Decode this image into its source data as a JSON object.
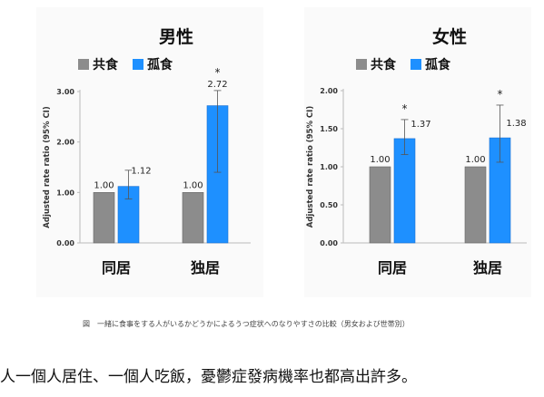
{
  "chart_data": [
    {
      "type": "bar",
      "title": "男性",
      "categories": [
        "同居",
        "独居"
      ],
      "ylabel": "Adjusted rate ratio (95% CI)",
      "ylim": [
        0,
        3
      ],
      "yticks": [
        "0.00",
        "1.00",
        "2.00",
        "3.00"
      ],
      "series": [
        {
          "name": "共食",
          "color": "#8c8c8c",
          "values": [
            1.0,
            1.0
          ],
          "labels": [
            "1.00",
            "1.00"
          ],
          "ci": [
            null,
            null
          ]
        },
        {
          "name": "孤食",
          "color": "#1e90ff",
          "values": [
            1.12,
            2.72
          ],
          "labels": [
            "1.12",
            "2.72"
          ],
          "ci": [
            [
              0.87,
              1.44
            ],
            [
              1.4,
              3.02
            ]
          ]
        }
      ],
      "significance": [
        {
          "series": 1,
          "category": 1,
          "mark": "*"
        }
      ],
      "legend": "top-left",
      "grid": false
    },
    {
      "type": "bar",
      "title": "女性",
      "categories": [
        "同居",
        "独居"
      ],
      "ylabel": "Adjusted rate ratio (95% CI)",
      "ylim": [
        0,
        2
      ],
      "yticks": [
        "0.00",
        "0.50",
        "1.00",
        "1.50",
        "2.00"
      ],
      "series": [
        {
          "name": "共食",
          "color": "#8c8c8c",
          "values": [
            1.0,
            1.0
          ],
          "labels": [
            "1.00",
            "1.00"
          ],
          "ci": [
            null,
            null
          ]
        },
        {
          "name": "孤食",
          "color": "#1e90ff",
          "values": [
            1.37,
            1.38
          ],
          "labels": [
            "1.37",
            "1.38"
          ],
          "ci": [
            [
              1.16,
              1.62
            ],
            [
              1.06,
              1.81
            ]
          ]
        }
      ],
      "significance": [
        {
          "series": 1,
          "category": 0,
          "mark": "*"
        },
        {
          "series": 1,
          "category": 1,
          "mark": "*"
        }
      ],
      "legend": "top-left",
      "grid": false
    }
  ],
  "caption": "図　一緒に食事をする人がいるかどうかによるうつ症状へのなりやすさの比較（男女および世帯別）",
  "bottom_text": "人一個人居住、一個人吃飯，憂鬱症發病機率也都高出許多。"
}
